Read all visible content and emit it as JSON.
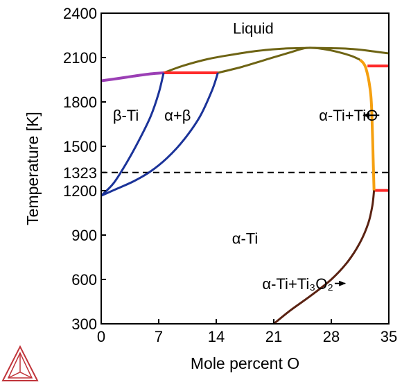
{
  "chart_data": {
    "type": "line",
    "title": "",
    "xlabel": "Mole percent O",
    "ylabel": "Temperature [K]",
    "xlim": [
      0,
      35
    ],
    "ylim": [
      300,
      2400
    ],
    "xticks": [
      {
        "value": 0,
        "label": "0"
      },
      {
        "value": 7,
        "label": "7"
      },
      {
        "value": 14,
        "label": "14"
      },
      {
        "value": 21,
        "label": "21"
      },
      {
        "value": 28,
        "label": "28"
      },
      {
        "value": 35,
        "label": "35"
      }
    ],
    "yticks": [
      {
        "value": 300,
        "label": "300"
      },
      {
        "value": 600,
        "label": "600"
      },
      {
        "value": 900,
        "label": "900"
      },
      {
        "value": 1200,
        "label": "1200"
      },
      {
        "value": 1323,
        "label": "1323"
      },
      {
        "value": 1500,
        "label": "1500"
      },
      {
        "value": 1800,
        "label": "1800"
      },
      {
        "value": 2100,
        "label": "2100"
      },
      {
        "value": 2400,
        "label": "2400"
      }
    ],
    "grid": false,
    "series": [
      {
        "color": "#9b3fb5",
        "width": 4,
        "x": [
          0,
          2,
          4,
          6,
          7.6
        ],
        "y": [
          1943,
          1958,
          1975,
          1990,
          1997
        ]
      },
      {
        "color": "#6e6414",
        "width": 3,
        "x": [
          7.6,
          10,
          13,
          16,
          19,
          22,
          25,
          26,
          28,
          30,
          32,
          34,
          35
        ],
        "y": [
          1997,
          2045,
          2090,
          2120,
          2145,
          2160,
          2165,
          2165,
          2163,
          2160,
          2150,
          2135,
          2128
        ]
      },
      {
        "color": "#6e6414",
        "width": 3,
        "x": [
          14.2,
          17,
          20,
          23,
          25,
          27,
          29,
          30.5,
          31.5
        ],
        "y": [
          1997,
          2035,
          2085,
          2135,
          2165,
          2158,
          2135,
          2110,
          2085
        ]
      },
      {
        "color": "#ff2a2a",
        "width": 4,
        "x": [
          7.6,
          14.2
        ],
        "y": [
          1997,
          1997
        ]
      },
      {
        "color": "#ff2a2a",
        "width": 4,
        "x": [
          32.4,
          35
        ],
        "y": [
          2043,
          2043
        ]
      },
      {
        "color": "#ff2a2a",
        "width": 4,
        "x": [
          33.2,
          35
        ],
        "y": [
          1202,
          1202
        ]
      },
      {
        "color": "#1b3399",
        "width": 3,
        "x": [
          0,
          1.5,
          3,
          4.5,
          6,
          7,
          7.6
        ],
        "y": [
          1166,
          1250,
          1380,
          1530,
          1700,
          1860,
          1997
        ]
      },
      {
        "color": "#1b3399",
        "width": 3,
        "x": [
          0,
          2,
          4,
          6,
          8,
          10,
          12,
          13.5,
          14.2
        ],
        "y": [
          1166,
          1215,
          1265,
          1330,
          1420,
          1540,
          1700,
          1880,
          1997
        ]
      },
      {
        "color": "#f5a010",
        "width": 4,
        "x": [
          31.5,
          32.2,
          32.8,
          33.0,
          33.1,
          33.2
        ],
        "y": [
          2085,
          2030,
          1850,
          1600,
          1400,
          1202
        ]
      },
      {
        "color": "#5a2212",
        "width": 3,
        "x": [
          21,
          23,
          25.5,
          28,
          30,
          31.5,
          32.5,
          33.0,
          33.2
        ],
        "y": [
          300,
          390,
          490,
          600,
          720,
          850,
          980,
          1100,
          1202
        ]
      }
    ],
    "reference_lines": [
      {
        "y": 1323,
        "style": "dashed",
        "color": "#000000"
      }
    ],
    "annotations": [
      {
        "text": "Liquid",
        "x": 18.5,
        "y": 2300
      },
      {
        "text": "β-Ti",
        "x": 3,
        "y": 1710
      },
      {
        "text": "α+β",
        "x": 9.3,
        "y": 1710
      },
      {
        "text": "α-Ti+TiO",
        "x": 26.5,
        "y": 1710,
        "arrow_to": [
          31.9,
          1710
        ]
      },
      {
        "text": "α-Ti",
        "x": 17.5,
        "y": 880
      },
      {
        "text": "α-Ti+Ti₃O₂",
        "x": 19.6,
        "y": 573,
        "arrow_to": [
          29.7,
          573
        ]
      }
    ]
  },
  "logo": {
    "name": "thermo-calc-logo",
    "color": "#c0343a"
  }
}
